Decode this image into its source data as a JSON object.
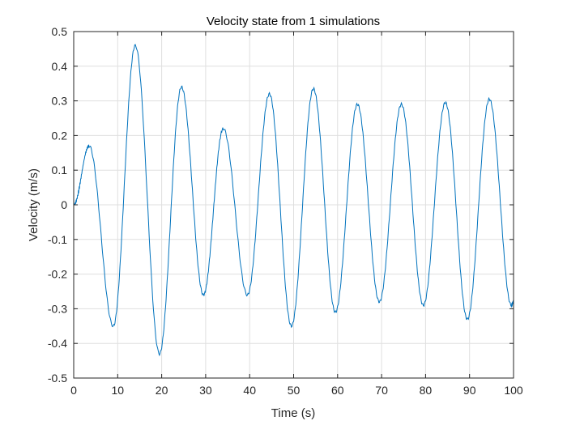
{
  "chart_data": {
    "type": "line",
    "title": "Velocity state from 1 simulations",
    "xlabel": "Time (s)",
    "ylabel": "Velocity (m/s)",
    "xlim": [
      0,
      100
    ],
    "ylim": [
      -0.5,
      0.5
    ],
    "xticks": [
      0,
      10,
      20,
      30,
      40,
      50,
      60,
      70,
      80,
      90,
      100
    ],
    "xtick_labels": [
      "0",
      "10",
      "20",
      "30",
      "40",
      "50",
      "60",
      "70",
      "80",
      "90",
      "100"
    ],
    "yticks": [
      -0.5,
      -0.4,
      -0.3,
      -0.2,
      -0.1,
      0,
      0.1,
      0.2,
      0.3,
      0.4,
      0.5
    ],
    "ytick_labels": [
      "-0.5",
      "-0.4",
      "-0.3",
      "-0.2",
      "-0.1",
      "0",
      "0.1",
      "0.2",
      "0.3",
      "0.4",
      "0.5"
    ],
    "grid": true,
    "series": [
      {
        "name": "Velocity",
        "color": "#0072BD",
        "x": [
          0,
          3.5,
          9,
          14,
          19.5,
          24.5,
          29.5,
          34,
          39.5,
          44.5,
          49.5,
          54.5,
          59.5,
          64.5,
          69.5,
          74.5,
          79.5,
          84.5,
          89.5,
          94.5,
          99.5,
          100
        ],
        "y": [
          0,
          0.17,
          -0.35,
          0.46,
          -0.43,
          0.34,
          -0.26,
          0.22,
          -0.26,
          0.32,
          -0.35,
          0.335,
          -0.31,
          0.29,
          -0.28,
          0.29,
          -0.29,
          0.295,
          -0.33,
          0.305,
          -0.29,
          -0.28
        ]
      }
    ]
  }
}
